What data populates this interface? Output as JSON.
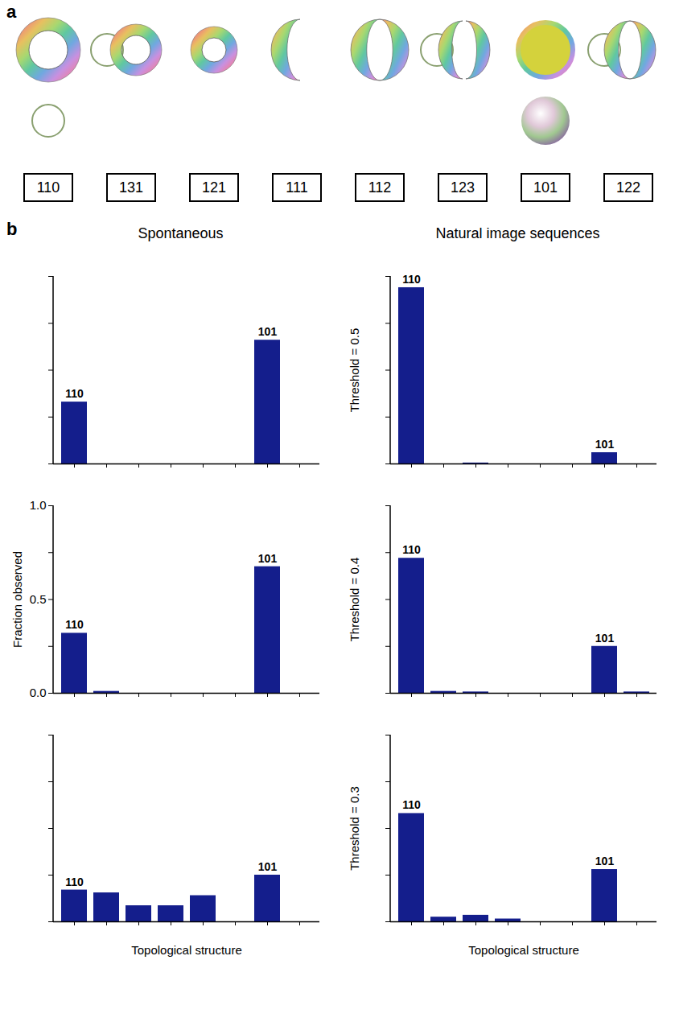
{
  "panel_a": {
    "letter": "a",
    "structures": [
      "110",
      "131",
      "121",
      "111",
      "112",
      "123",
      "101",
      "122"
    ]
  },
  "panel_b": {
    "letter": "b",
    "columns": [
      "Spontaneous",
      "Natural image sequences"
    ]
  },
  "chart_data": [
    {
      "type": "bar",
      "categories": [
        "110",
        "131",
        "121",
        "111",
        "112",
        "123",
        "101",
        "122"
      ],
      "values": [
        0.33,
        0,
        0,
        0,
        0,
        0,
        0.66,
        0
      ],
      "color": "#141e8c",
      "ylim": [
        0,
        1
      ],
      "yticks": [
        0,
        0.25,
        0.5,
        0.75,
        1
      ],
      "tick_labels": false,
      "labeled_categories": [
        "110",
        "101"
      ]
    },
    {
      "type": "bar",
      "y_label": "Threshold = 0.5",
      "categories": [
        "110",
        "131",
        "121",
        "111",
        "112",
        "123",
        "101",
        "122"
      ],
      "values": [
        0.94,
        0,
        0.005,
        0,
        0,
        0,
        0.06,
        0
      ],
      "color": "#141e8c",
      "ylim": [
        0,
        1
      ],
      "yticks": [
        0,
        0.25,
        0.5,
        0.75,
        1
      ],
      "tick_labels": false,
      "labeled_categories": [
        "110",
        "101"
      ]
    },
    {
      "type": "bar",
      "y_label": "Fraction observed",
      "categories": [
        "110",
        "131",
        "121",
        "111",
        "112",
        "123",
        "101",
        "122"
      ],
      "values": [
        0.32,
        0.01,
        0,
        0,
        0,
        0,
        0.675,
        0
      ],
      "color": "#141e8c",
      "ylim": [
        0,
        1
      ],
      "yticks": [
        {
          "value": 0,
          "label": "0.0"
        },
        {
          "value": 0.5,
          "label": "0.5"
        },
        {
          "value": 1,
          "label": "1.0"
        }
      ],
      "minor_yticks": [
        0.25,
        0.75
      ],
      "tick_labels": "y",
      "labeled_categories": [
        "110",
        "101"
      ]
    },
    {
      "type": "bar",
      "y_label": "Threshold = 0.4",
      "categories": [
        "110",
        "131",
        "121",
        "111",
        "112",
        "123",
        "101",
        "122"
      ],
      "values": [
        0.72,
        0.01,
        0.007,
        0,
        0,
        0,
        0.25,
        0.007
      ],
      "color": "#141e8c",
      "ylim": [
        0,
        1
      ],
      "yticks": [
        0,
        0.25,
        0.5,
        0.75,
        1
      ],
      "tick_labels": false,
      "labeled_categories": [
        "110",
        "101"
      ]
    },
    {
      "type": "bar",
      "x_label": "Topological structure",
      "categories": [
        "110",
        "131",
        "121",
        "111",
        "112",
        "123",
        "101",
        "122"
      ],
      "values": [
        0.17,
        0.155,
        0.086,
        0.086,
        0.14,
        0,
        0.25,
        0
      ],
      "color": "#141e8c",
      "ylim": [
        0,
        1
      ],
      "yticks": [
        0,
        0.25,
        0.5,
        0.75,
        1
      ],
      "tick_labels": false,
      "labeled_categories": [
        "110",
        "101"
      ]
    },
    {
      "type": "bar",
      "x_label": "Topological structure",
      "y_label": "Threshold = 0.3",
      "categories": [
        "110",
        "131",
        "121",
        "111",
        "112",
        "123",
        "101",
        "122"
      ],
      "values": [
        0.58,
        0.025,
        0.035,
        0.015,
        0,
        0,
        0.28,
        0
      ],
      "color": "#141e8c",
      "ylim": [
        0,
        1
      ],
      "yticks": [
        0,
        0.25,
        0.5,
        0.75,
        1
      ],
      "tick_labels": false,
      "labeled_categories": [
        "110",
        "101"
      ]
    }
  ]
}
